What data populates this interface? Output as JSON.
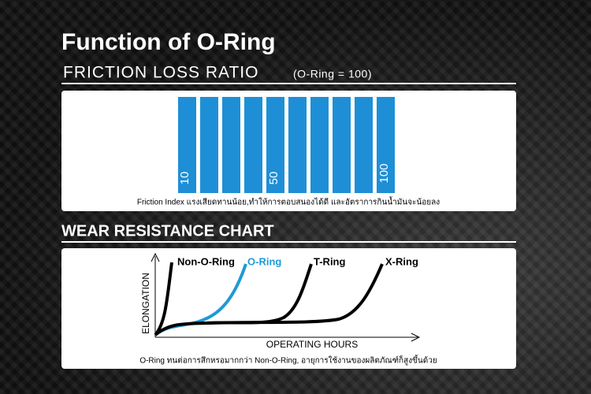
{
  "title": "Function of O-Ring",
  "friction": {
    "heading": "FRICTION LOSS RATIO",
    "note": "(O-Ring = 100)",
    "labels": [
      "10",
      "50",
      "100"
    ],
    "caption": "Friction Index แรงเสียดทานน้อย,ทำให้การตอบสนองได้ดี และอัตราการกินน้ำมันจะน้อยลง"
  },
  "wear": {
    "heading": "WEAR RESISTANCE CHART",
    "y_label": "ELONGATION",
    "x_label": "OPERATING HOURS",
    "curves": [
      "Non-O-Ring",
      "O-Ring",
      "T-Ring",
      "X-Ring"
    ],
    "caption": "O-Ring ทนต่อการสึกหรอมากกว่า Non-O-Ring, อายุการใช้งานของผลิตภัณฑ์ก็สูงขึ้นด้วย"
  }
}
